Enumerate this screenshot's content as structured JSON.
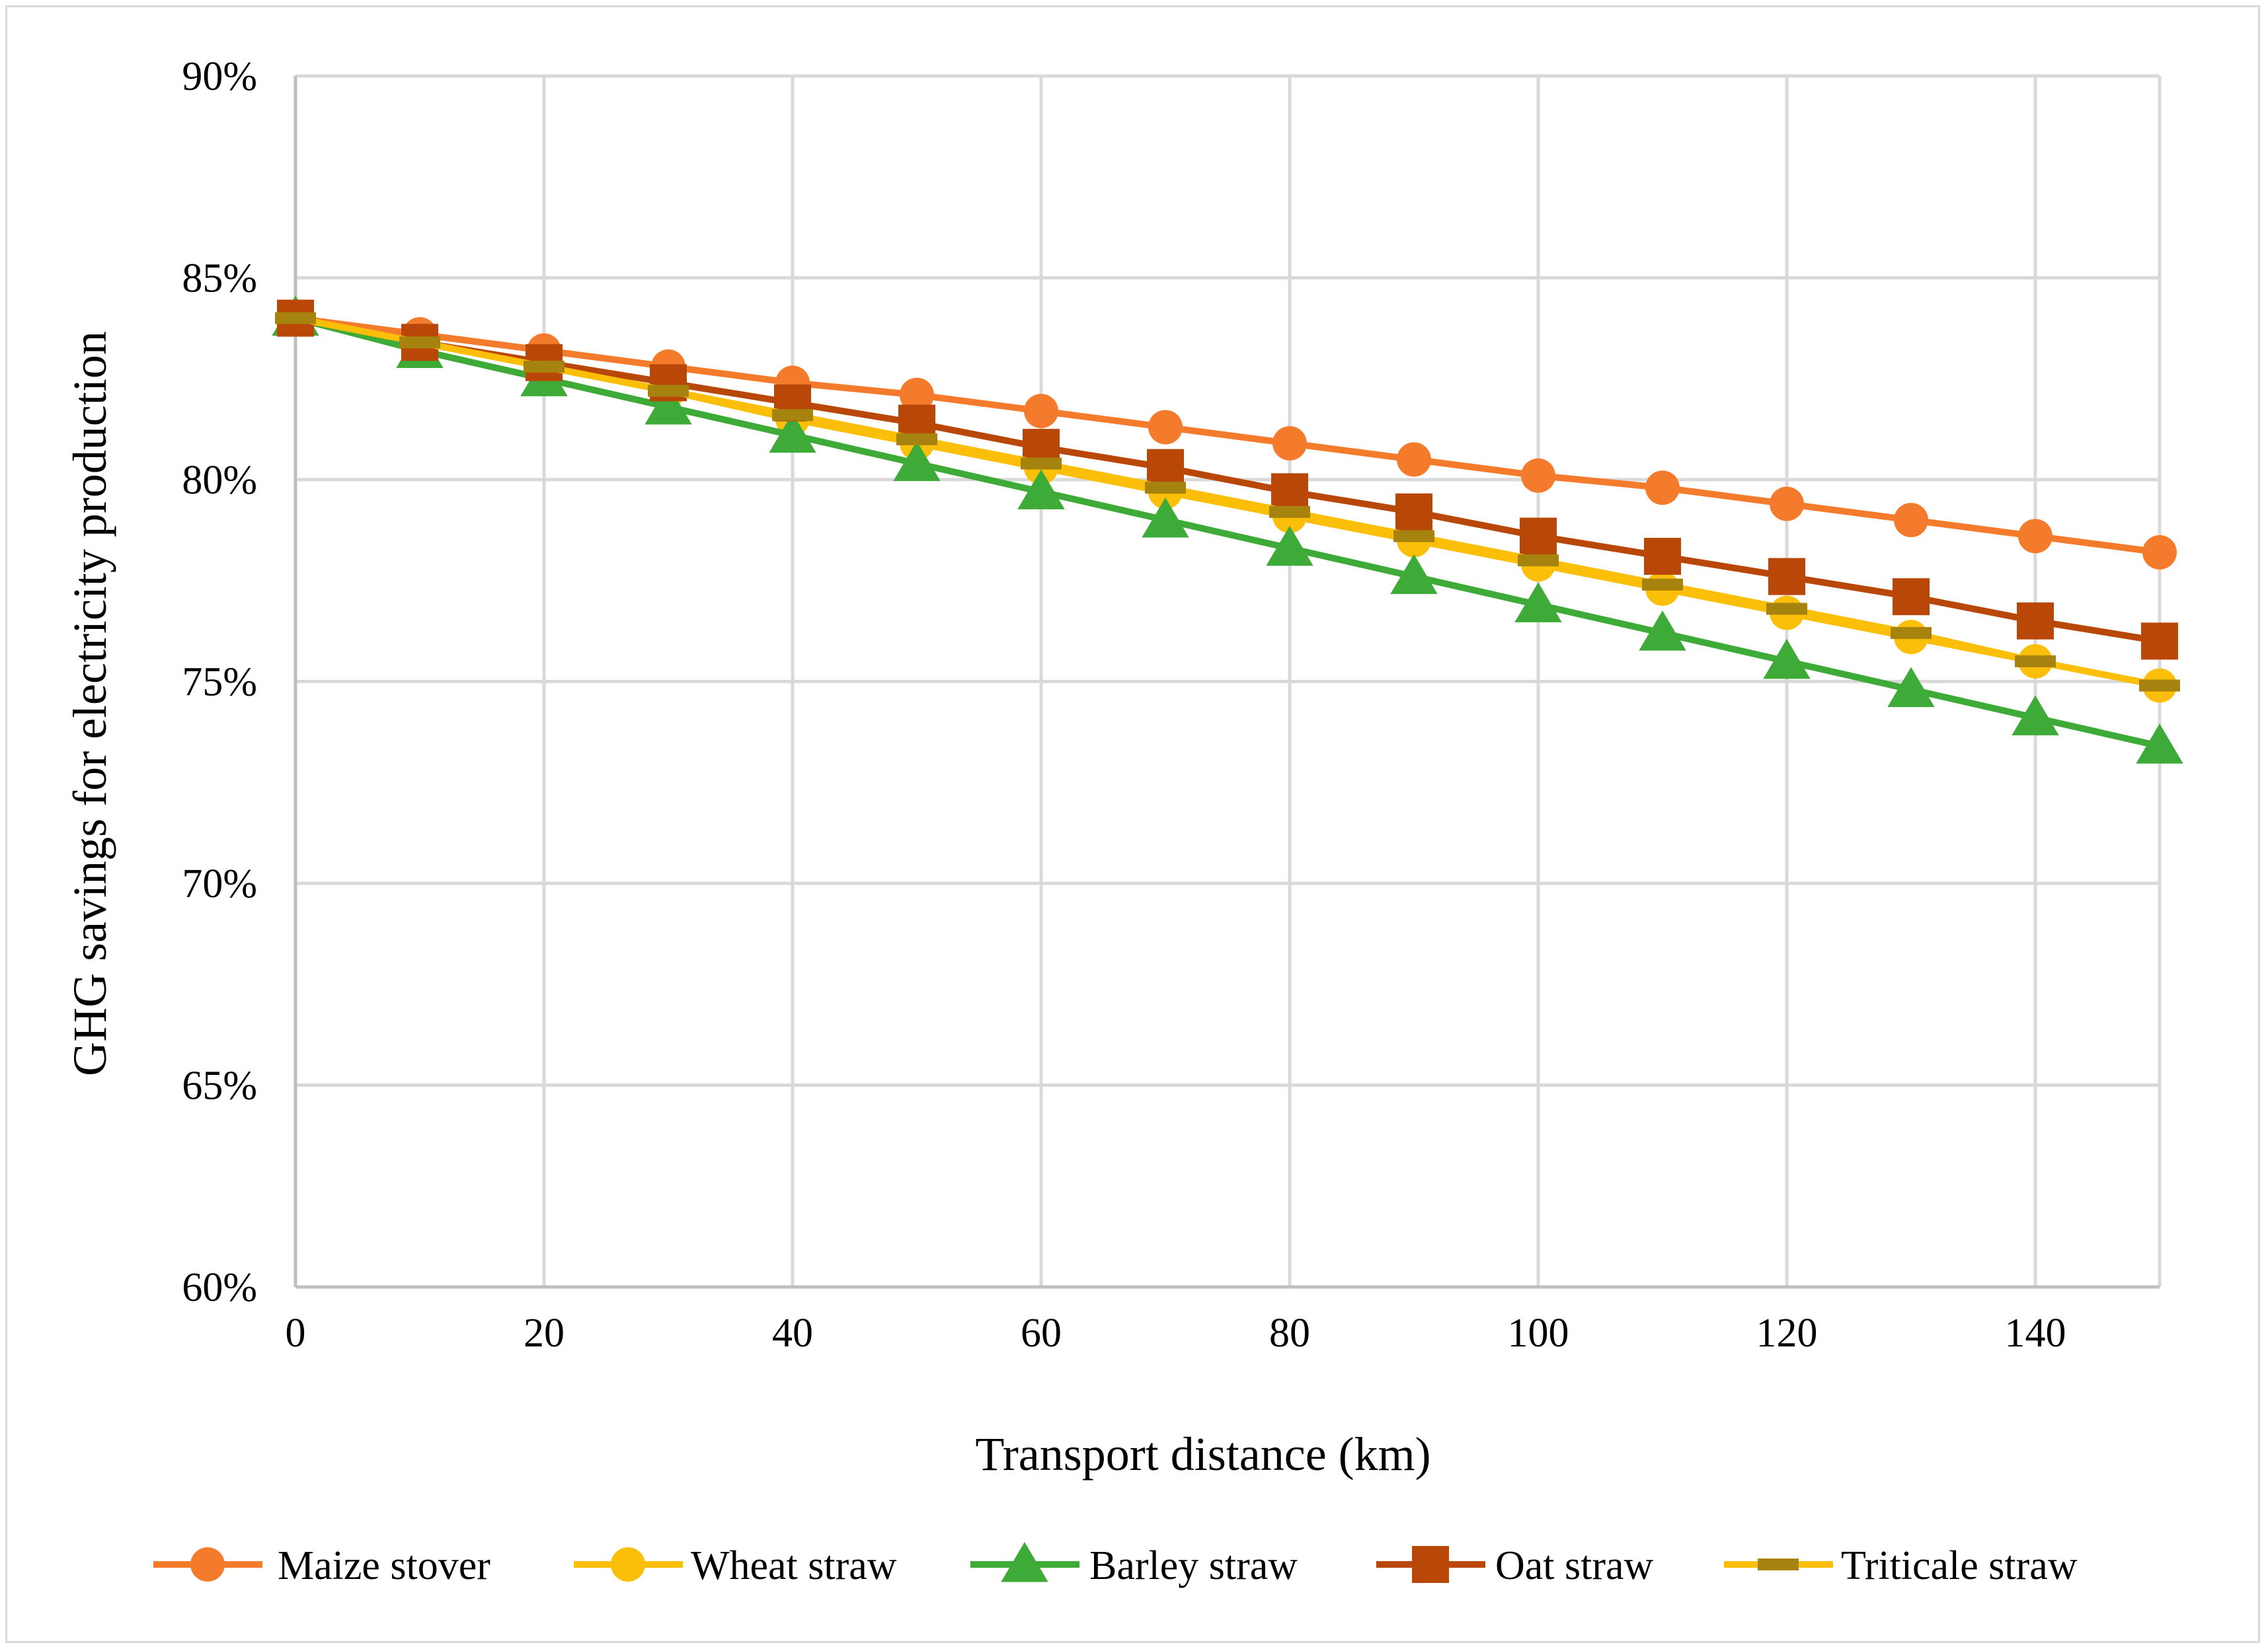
{
  "chart_data": {
    "type": "line",
    "title": "",
    "xlabel": "Transport distance (km)",
    "ylabel": "GHG savings for electricity production",
    "xlim": [
      0,
      150
    ],
    "ylim": [
      0.6,
      0.9
    ],
    "x_ticks": [
      0,
      20,
      40,
      60,
      80,
      100,
      120,
      140
    ],
    "x_tick_labels": [
      "0",
      "20",
      "40",
      "60",
      "80",
      "100",
      "120",
      "140"
    ],
    "y_ticks": [
      0.6,
      0.65,
      0.7,
      0.75,
      0.8,
      0.85,
      0.9
    ],
    "y_tick_labels": [
      "60%",
      "65%",
      "70%",
      "75%",
      "80%",
      "85%",
      "90%"
    ],
    "grid": true,
    "legend_position": "bottom",
    "x": [
      0,
      10,
      20,
      30,
      40,
      50,
      60,
      70,
      80,
      90,
      100,
      110,
      120,
      130,
      140,
      150
    ],
    "series": [
      {
        "name": "Maize stover",
        "color": "#f47b2b",
        "marker": "circle",
        "values": [
          0.84,
          0.836,
          0.832,
          0.828,
          0.824,
          0.821,
          0.817,
          0.813,
          0.809,
          0.805,
          0.801,
          0.798,
          0.794,
          0.79,
          0.786,
          0.782
        ]
      },
      {
        "name": "Wheat straw",
        "color": "#fbbf0a",
        "marker": "circle",
        "values": [
          0.84,
          0.834,
          0.828,
          0.822,
          0.815,
          0.809,
          0.803,
          0.797,
          0.791,
          0.785,
          0.779,
          0.773,
          0.767,
          0.761,
          0.755,
          0.749
        ]
      },
      {
        "name": "Barley straw",
        "color": "#3eaa37",
        "marker": "triangle",
        "values": [
          0.84,
          0.832,
          0.825,
          0.818,
          0.811,
          0.804,
          0.797,
          0.79,
          0.783,
          0.776,
          0.769,
          0.762,
          0.755,
          0.748,
          0.741,
          0.734
        ]
      },
      {
        "name": "Oat straw",
        "color": "#b84708",
        "marker": "square",
        "values": [
          0.84,
          0.834,
          0.829,
          0.824,
          0.819,
          0.814,
          0.808,
          0.803,
          0.797,
          0.792,
          0.786,
          0.781,
          0.776,
          0.771,
          0.765,
          0.76
        ]
      },
      {
        "name": "Triticale straw",
        "color": "#fbbf0a",
        "marker_color": "#a6820f",
        "marker": "dash",
        "values": [
          0.84,
          0.834,
          0.828,
          0.822,
          0.816,
          0.81,
          0.804,
          0.798,
          0.792,
          0.786,
          0.78,
          0.774,
          0.768,
          0.762,
          0.755,
          0.749
        ]
      }
    ]
  }
}
